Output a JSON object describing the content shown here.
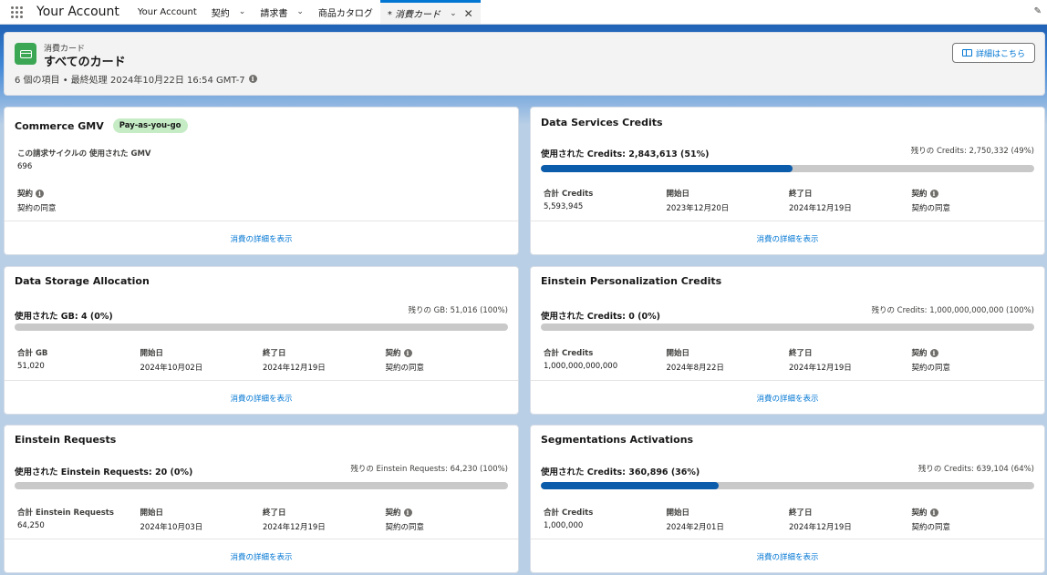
{
  "nav": {
    "app_name": "Your Account",
    "items": [
      {
        "label": "Your Account",
        "has_menu": false
      },
      {
        "label": "契約",
        "has_menu": true
      },
      {
        "label": "請求書",
        "has_menu": true
      },
      {
        "label": "商品カタログ",
        "has_menu": false
      }
    ],
    "active_tab": "* 消費カード"
  },
  "header": {
    "eyebrow": "消費カード",
    "title": "すべてのカード",
    "meta": "6 個の項目 • 最終処理 2024年10月22日 16:54 GMT-7",
    "button_label": "詳細はこちら"
  },
  "detail_link_label": "消費の詳細を表示",
  "cards": [
    {
      "title": "Commerce GMV",
      "badge": "Pay-as-you-go",
      "gmv_label": "この請求サイクルの 使用された GMV",
      "gmv_value": "696",
      "contract_label": "契約",
      "contract_value": "契約の同意"
    },
    {
      "title": "Data Services Credits",
      "used": "使用された Credits: 2,843,613 (51%)",
      "remaining": "残りの Credits: 2,750,332 (49%)",
      "progress": 0.51,
      "total_label": "合計 Credits",
      "total_value": "5,593,945",
      "start_label": "開始日",
      "start_value": "2023年12月20日",
      "end_label": "終了日",
      "end_value": "2024年12月19日",
      "contract_label": "契約",
      "contract_value": "契約の同意"
    },
    {
      "title": "Data Storage Allocation",
      "used": "使用された GB: 4 (0%)",
      "remaining": "残りの GB: 51,016 (100%)",
      "progress": 0,
      "total_label": "合計 GB",
      "total_value": "51,020",
      "start_label": "開始日",
      "start_value": "2024年10月02日",
      "end_label": "終了日",
      "end_value": "2024年12月19日",
      "contract_label": "契約",
      "contract_value": "契約の同意"
    },
    {
      "title": "Einstein Personalization Credits",
      "used": "使用された Credits: 0 (0%)",
      "remaining": "残りの Credits: 1,000,000,000,000 (100%)",
      "progress": 0,
      "total_label": "合計 Credits",
      "total_value": "1,000,000,000,000",
      "start_label": "開始日",
      "start_value": "2024年8月22日",
      "end_label": "終了日",
      "end_value": "2024年12月19日",
      "contract_label": "契約",
      "contract_value": "契約の同意"
    },
    {
      "title": "Einstein Requests",
      "used": "使用された Einstein Requests: 20 (0%)",
      "remaining": "残りの Einstein Requests: 64,230 (100%)",
      "progress": 0,
      "total_label": "合計 Einstein Requests",
      "total_value": "64,250",
      "start_label": "開始日",
      "start_value": "2024年10月03日",
      "end_label": "終了日",
      "end_value": "2024年12月19日",
      "contract_label": "契約",
      "contract_value": "契約の同意"
    },
    {
      "title": "Segmentations Activations",
      "used": "使用された Credits: 360,896 (36%)",
      "remaining": "残りの Credits: 639,104 (64%)",
      "progress": 0.36,
      "total_label": "合計 Credits",
      "total_value": "1,000,000",
      "start_label": "開始日",
      "start_value": "2024年2月01日",
      "end_label": "終了日",
      "end_value": "2024年12月19日",
      "contract_label": "契約",
      "contract_value": "契約の同意"
    }
  ],
  "colors": {
    "brand_blue": "#0176d3",
    "progress_fill": "#0b5cab",
    "progress_track": "#c9c9c9",
    "icon_green": "#3ba755",
    "badge_green": "#c5ecc5"
  }
}
